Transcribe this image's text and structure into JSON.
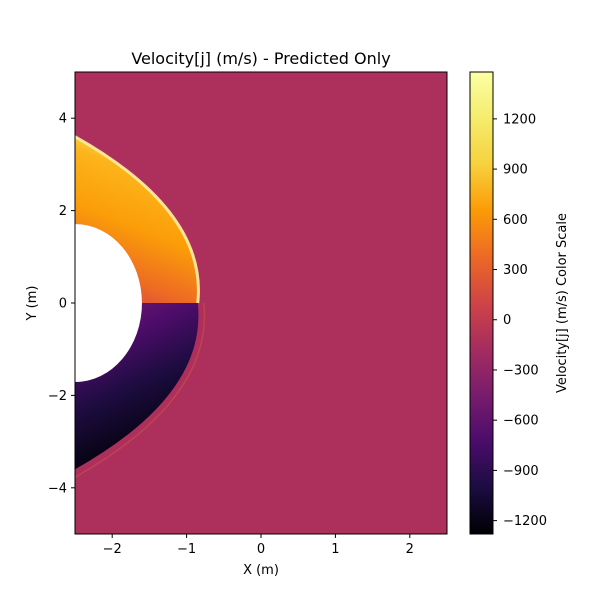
{
  "chart_data": {
    "type": "heatmap",
    "title": "Velocity[j] (m/s) - Predicted Only",
    "xlabel": "X (m)",
    "ylabel": "Y (m)",
    "xlim": [
      -2.5,
      2.5
    ],
    "ylim": [
      -5,
      5
    ],
    "x_ticks": [
      -2,
      -1,
      0,
      1,
      2
    ],
    "x_tick_labels": [
      "−2",
      "−1",
      "0",
      "1",
      "2"
    ],
    "y_ticks": [
      -4,
      -2,
      0,
      2,
      4
    ],
    "y_tick_labels": [
      "−4",
      "−2",
      "0",
      "2",
      "4"
    ],
    "colorbar": {
      "label": "Velocity[j] (m/s) Color Scale",
      "range": [
        -1280,
        1480
      ],
      "ticks": [
        -1200,
        -900,
        -600,
        -300,
        0,
        300,
        600,
        900,
        1200
      ],
      "tick_labels": [
        "−1200",
        "−900",
        "−600",
        "−300",
        "0",
        "300",
        "600",
        "900",
        "1200"
      ],
      "colormap": "inferno"
    },
    "background_value": 0,
    "body": {
      "shape": "circle",
      "center": [
        -2.5,
        0
      ],
      "radius": 0.9
    },
    "shock": {
      "standoff_x": -0.85,
      "vertex_x": -0.85,
      "half_height_at_left_edge": 3.6
    },
    "max_value": 1480,
    "min_value": -1280
  }
}
